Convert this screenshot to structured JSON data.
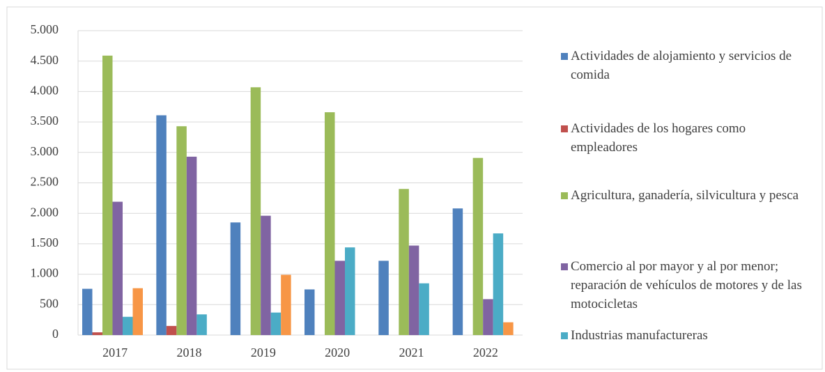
{
  "chart_data": {
    "type": "bar",
    "categories": [
      "2017",
      "2018",
      "2019",
      "2020",
      "2021",
      "2022"
    ],
    "series": [
      {
        "name": "Actividades de alojamiento y servicios de comida",
        "color": "#4f81bd",
        "values": [
          760,
          3610,
          1850,
          750,
          1220,
          2080
        ]
      },
      {
        "name": "Actividades de los hogares como empleadores",
        "color": "#c0504d",
        "values": [
          45,
          150,
          null,
          null,
          null,
          null
        ]
      },
      {
        "name": "Agricultura, ganadería, silvicultura y pesca",
        "color": "#9bbb59",
        "values": [
          4590,
          3430,
          4070,
          3660,
          2400,
          2910
        ]
      },
      {
        "name": "Comercio al por mayor y al por menor; reparación de vehículos de motores y de las motocicletas",
        "color": "#8064a2",
        "values": [
          2190,
          2930,
          1960,
          1220,
          1470,
          590
        ]
      },
      {
        "name": "Industrias manufactureras",
        "color": "#4bacc6",
        "values": [
          300,
          340,
          370,
          1440,
          850,
          1670
        ]
      },
      {
        "color": "#f79646",
        "values": [
          770,
          null,
          990,
          null,
          null,
          210
        ]
      }
    ],
    "ylim": [
      0,
      5000
    ],
    "yticks": [
      0,
      500,
      {
        "value": 1000,
        "label": "1.000"
      },
      {
        "value": 1500,
        "label": "1.500"
      },
      {
        "value": 2000,
        "label": "2.000"
      },
      {
        "value": 2500,
        "label": "2.500"
      },
      {
        "value": 3000,
        "label": "3.000"
      },
      {
        "value": 3500,
        "label": "3.500"
      },
      {
        "value": 4000,
        "label": "4.000"
      },
      {
        "value": 4500,
        "label": "4.500"
      },
      {
        "value": 5000,
        "label": "5.000"
      }
    ],
    "grid": true
  }
}
